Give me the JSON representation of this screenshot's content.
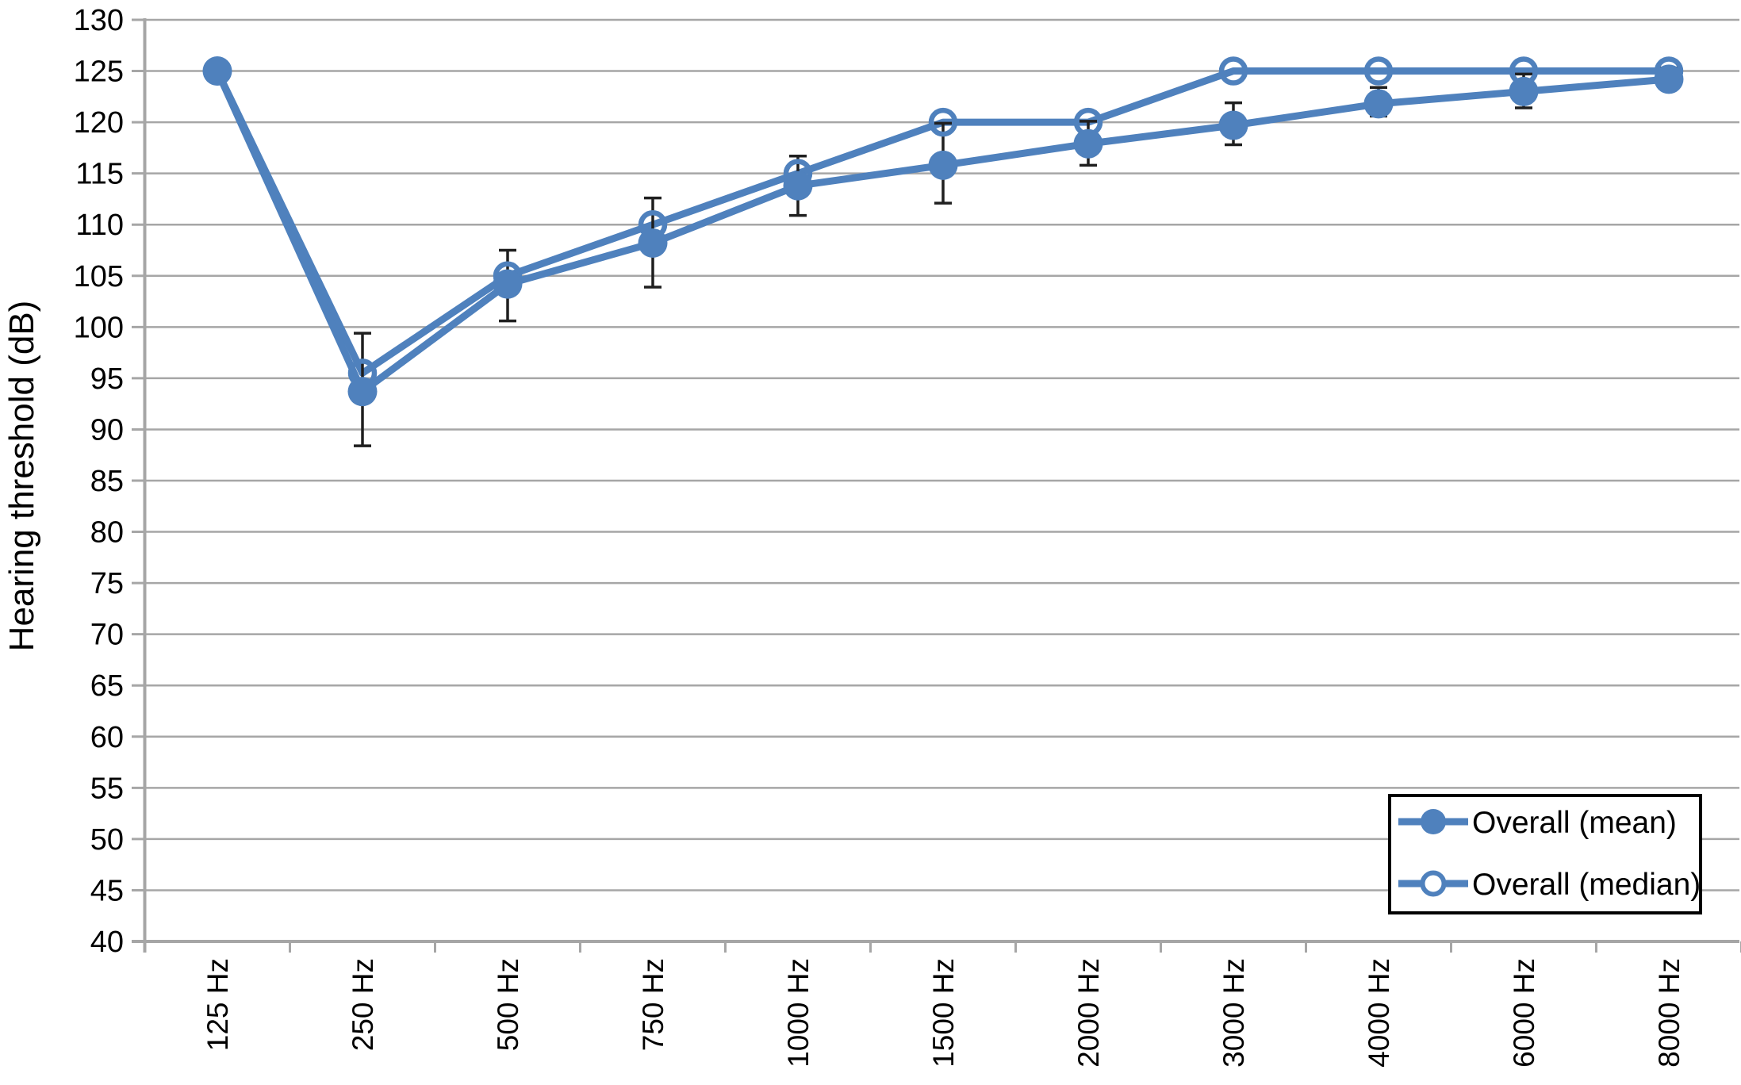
{
  "figure": {
    "y_axis_title": "Hearing threshold (dB)",
    "y_tick_labels": [
      "130",
      "125",
      "120",
      "115",
      "110",
      "105",
      "100",
      "95",
      "90",
      "85",
      "80",
      "75",
      "70",
      "65",
      "60",
      "55",
      "50",
      "45",
      "40"
    ],
    "legend": {
      "mean_label": "Overall (mean)",
      "median_label": "Overall (median)"
    }
  },
  "chart_data": {
    "type": "line",
    "title": "",
    "xlabel": "",
    "ylabel": "Hearing threshold (dB)",
    "categories": [
      "125 Hz",
      "250 Hz",
      "500 Hz",
      "750 Hz",
      "1000 Hz",
      "1500 Hz",
      "2000 Hz",
      "3000 Hz",
      "4000 Hz",
      "6000 Hz",
      "8000 Hz"
    ],
    "ylim": [
      40,
      130
    ],
    "ytick_step": 5,
    "grid": "horizontal",
    "legend_position": "inside-bottom-right",
    "series": [
      {
        "name": "Overall (mean)",
        "marker": "filled-circle",
        "values": [
          125,
          93.7,
          104.2,
          108.2,
          113.8,
          115.8,
          117.9,
          119.7,
          121.8,
          123,
          124.2
        ],
        "error_low": [
          null,
          88.4,
          100.6,
          103.9,
          110.9,
          112.1,
          115.8,
          117.8,
          120.6,
          121.4,
          123.2
        ],
        "error_high": [
          null,
          99.4,
          107.5,
          112.6,
          116.7,
          119.9,
          120.1,
          121.9,
          123.4,
          124.7,
          125.3
        ]
      },
      {
        "name": "Overall (median)",
        "marker": "open-circle",
        "values": [
          125,
          95.5,
          105,
          110,
          115,
          120,
          120,
          125,
          125,
          125,
          125
        ]
      }
    ],
    "colors": {
      "series": "#4f81bd",
      "grid": "#a6a6a6",
      "axis": "#a6a6a6",
      "error_bar": "#1f1f1f",
      "text": "#000000",
      "legend_border": "#000000",
      "background": "#ffffff"
    }
  }
}
